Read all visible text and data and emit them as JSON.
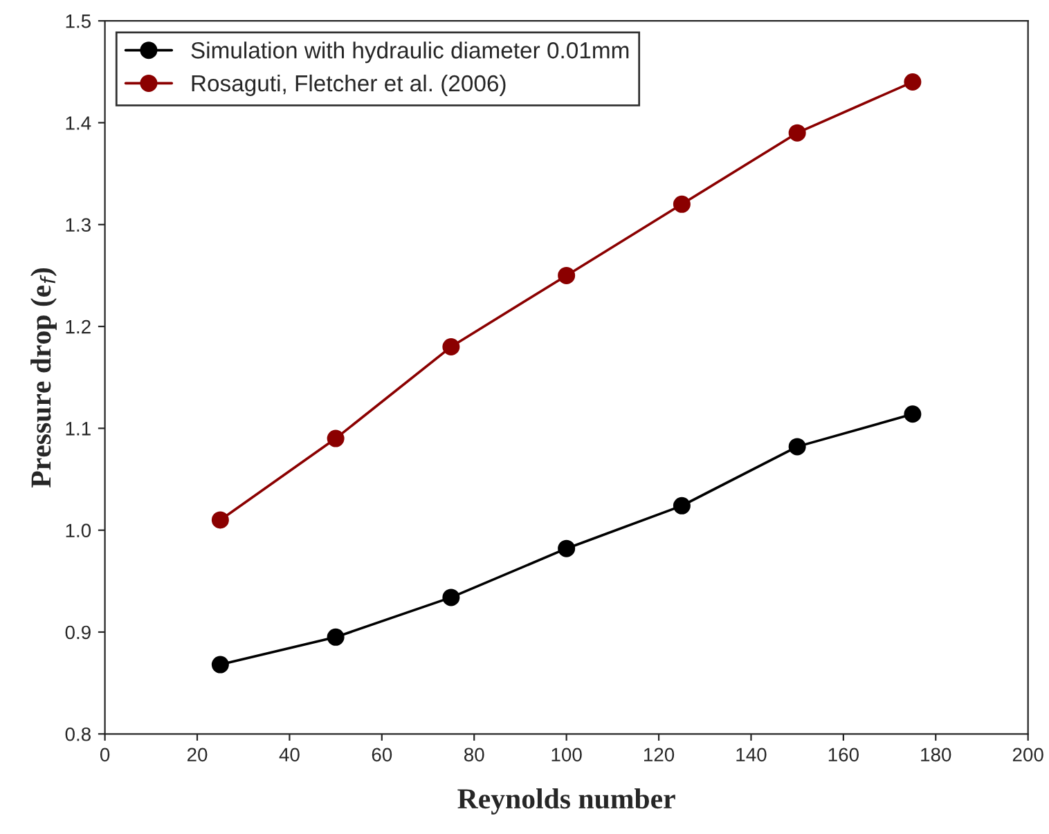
{
  "chart_data": {
    "type": "line",
    "xlabel": "Reynolds number",
    "ylabel": "Pressure drop (e$_{f}$)",
    "x": [
      25,
      50,
      75,
      100,
      125,
      150,
      175
    ],
    "series": [
      {
        "name": "Simulation with hydraulic diameter 0.01mm",
        "color": "#000000",
        "values": [
          0.868,
          0.895,
          0.934,
          0.982,
          1.024,
          1.082,
          1.114
        ]
      },
      {
        "name": "Rosaguti, Fletcher et al. (2006)",
        "color": "#8b0000",
        "values": [
          1.01,
          1.09,
          1.18,
          1.25,
          1.32,
          1.39,
          1.44
        ]
      }
    ],
    "xlim": [
      0,
      200
    ],
    "xticks": [
      0,
      20,
      40,
      60,
      80,
      100,
      120,
      140,
      160,
      180,
      200
    ],
    "ylim": [
      0.8,
      1.5
    ],
    "yticks": [
      0.8,
      0.9,
      {
        "value": 1,
        "label": "1.0"
      },
      1.1,
      1.2,
      1.3,
      1.4,
      1.5
    ],
    "grid": false,
    "legend": "top left",
    "marker": "circle",
    "line_style": "solid"
  }
}
